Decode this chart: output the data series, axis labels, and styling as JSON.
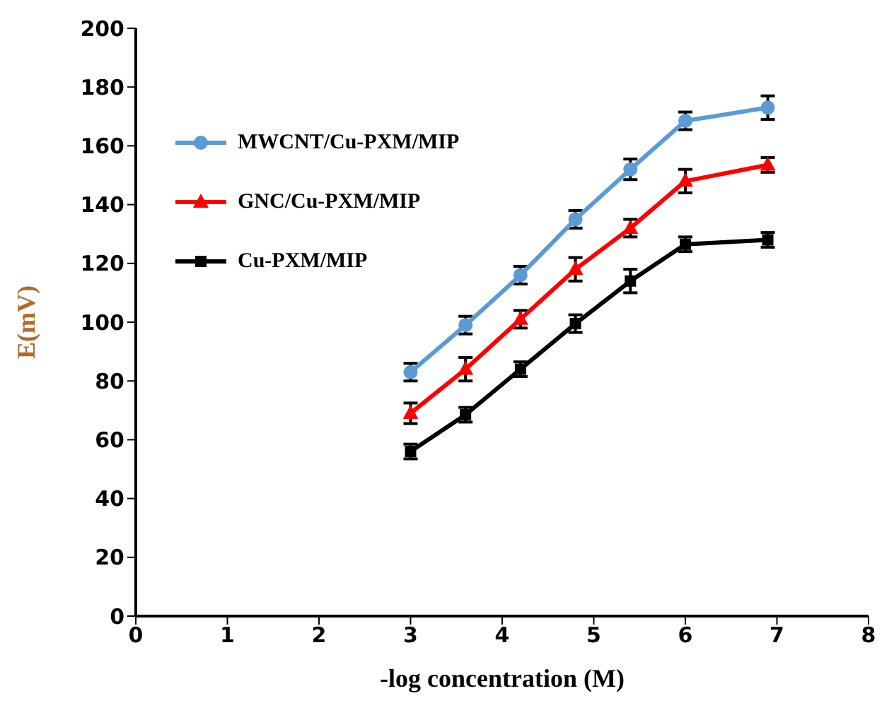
{
  "chart_data": {
    "type": "line",
    "xlabel": "-log concentration (M)",
    "ylabel": "E(mV)",
    "x": [
      3,
      3.6,
      4.2,
      4.8,
      5.4,
      6.0,
      6.9
    ],
    "series": [
      {
        "name": "MWCNT/Cu-PXM/MIP",
        "color": "#5b9bd5",
        "marker": "circle",
        "values": [
          83,
          99,
          116,
          135,
          152,
          168.5,
          173
        ],
        "errors": [
          3,
          3,
          3,
          3,
          3.5,
          3,
          4
        ]
      },
      {
        "name": "GNC/Cu-PXM/MIP",
        "color": "#ff0000",
        "marker": "triangle",
        "values": [
          69,
          84,
          101,
          118,
          132,
          148,
          153.5
        ],
        "errors": [
          3.5,
          4,
          3,
          4,
          3,
          4,
          2.5
        ]
      },
      {
        "name": "Cu-PXM/MIP",
        "color": "#000000",
        "marker": "square",
        "values": [
          56,
          68.5,
          84,
          99.5,
          114,
          126.5,
          128
        ],
        "errors": [
          2.5,
          2.5,
          2.5,
          3,
          4,
          2.5,
          2.5
        ]
      }
    ],
    "xlim": [
      0,
      8
    ],
    "xticks": [
      0,
      1,
      2,
      3,
      4,
      5,
      6,
      7,
      8
    ],
    "ylim": [
      0,
      200
    ],
    "yticks": [
      0,
      20,
      40,
      60,
      80,
      100,
      120,
      140,
      160,
      180,
      200
    ],
    "grid": false,
    "legend": "top left",
    "line_style": "solid"
  }
}
